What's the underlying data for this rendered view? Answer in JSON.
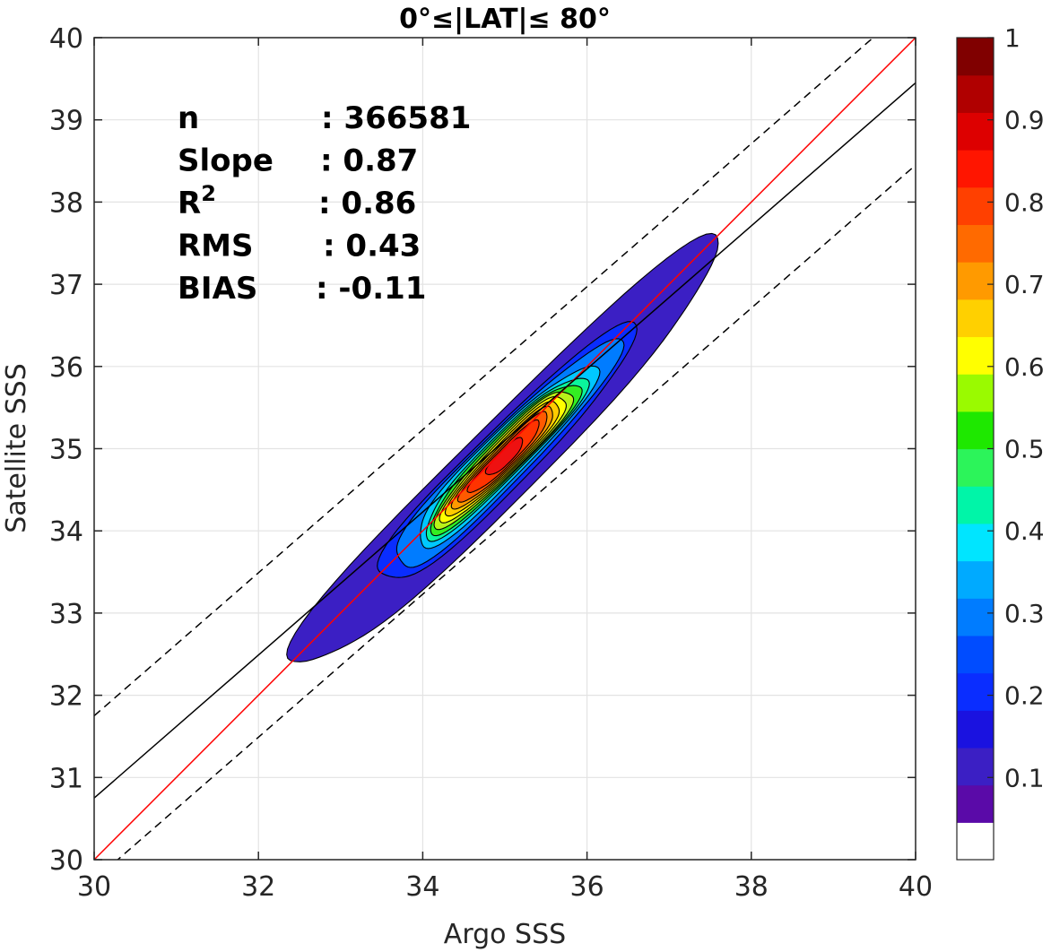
{
  "chart_data": {
    "type": "heatmap",
    "subtype": "density-contour-scatter",
    "title": "0°≤|LAT|≤ 80°",
    "xlabel": "Argo SSS",
    "ylabel": "Satellite SSS",
    "xlim": [
      30,
      40
    ],
    "ylim": [
      30,
      40
    ],
    "xticks": [
      30,
      32,
      34,
      36,
      38,
      40
    ],
    "yticks": [
      30,
      31,
      32,
      33,
      34,
      35,
      36,
      37,
      38,
      39,
      40
    ],
    "grid": true,
    "stats": [
      {
        "label": "n",
        "value": ": 366581"
      },
      {
        "label": "Slope",
        "value": ": 0.87"
      },
      {
        "label": "R",
        "sup": "2",
        "value": ": 0.86"
      },
      {
        "label": "RMS",
        "value": ": 0.43"
      },
      {
        "label": "BIAS",
        "value": ": -0.11"
      }
    ],
    "lines": [
      {
        "kind": "one-to-one",
        "color": "#ff0000",
        "style": "solid",
        "points": [
          [
            30,
            30
          ],
          [
            40,
            40
          ]
        ]
      },
      {
        "kind": "regression",
        "color": "#000000",
        "style": "solid",
        "points": [
          [
            30,
            30.75
          ],
          [
            40,
            39.45
          ]
        ]
      },
      {
        "kind": "upper-bound",
        "color": "#000000",
        "style": "dashed",
        "points": [
          [
            30,
            31.75
          ],
          [
            40,
            40.45
          ]
        ]
      },
      {
        "kind": "lower-bound",
        "color": "#000000",
        "style": "dashed",
        "points": [
          [
            30,
            29.75
          ],
          [
            40,
            38.45
          ]
        ]
      }
    ],
    "density": {
      "center_x": 35.0,
      "center_y": 34.9,
      "axis_dx": 0.707,
      "axis_dy": 0.707,
      "levels": [
        {
          "level": 0.05,
          "half_len": 3.6,
          "half_width": 0.45,
          "color": "#3b1fc4"
        },
        {
          "level": 0.15,
          "half_len": 2.15,
          "half_width": 0.34,
          "color": "#0a2dff"
        },
        {
          "level": 0.25,
          "half_len": 1.9,
          "half_width": 0.3,
          "color": "#007cff"
        },
        {
          "level": 0.35,
          "half_len": 1.5,
          "half_width": 0.27,
          "color": "#00c8ff"
        },
        {
          "level": 0.45,
          "half_len": 1.35,
          "half_width": 0.24,
          "color": "#0bf59c"
        },
        {
          "level": 0.5,
          "half_len": 1.25,
          "half_width": 0.22,
          "color": "#33ee22"
        },
        {
          "level": 0.6,
          "half_len": 1.15,
          "half_width": 0.2,
          "color": "#b9f21a"
        },
        {
          "level": 0.65,
          "half_len": 1.05,
          "half_width": 0.18,
          "color": "#ffff00"
        },
        {
          "level": 0.7,
          "half_len": 0.95,
          "half_width": 0.16,
          "color": "#ffcc00"
        },
        {
          "level": 0.75,
          "half_len": 0.85,
          "half_width": 0.14,
          "color": "#ff9900"
        },
        {
          "level": 0.8,
          "half_len": 0.75,
          "half_width": 0.12,
          "color": "#ff5a00"
        },
        {
          "level": 0.85,
          "half_len": 0.6,
          "half_width": 0.1,
          "color": "#ff3300"
        },
        {
          "level": 0.9,
          "half_len": 0.3,
          "half_width": 0.08,
          "color": "#ee1111"
        }
      ]
    },
    "colorbar": {
      "ticks": [
        "1",
        "0.9",
        "0.8",
        "0.7",
        "0.6",
        "0.5",
        "0.4",
        "0.3",
        "0.2",
        "0.1"
      ],
      "tick_values": [
        1,
        0.9,
        0.8,
        0.7,
        0.6,
        0.5,
        0.4,
        0.3,
        0.2,
        0.1
      ],
      "colors": [
        "#ffffff",
        "#5a0aa8",
        "#3b1fc4",
        "#1a12e0",
        "#0a2dff",
        "#004cff",
        "#007cff",
        "#00aaff",
        "#00e5ff",
        "#00f5a8",
        "#2cf45a",
        "#1ee800",
        "#9afa00",
        "#ffff00",
        "#ffd000",
        "#ff9a00",
        "#ff6a00",
        "#ff4000",
        "#ff1500",
        "#dd0000",
        "#b00000",
        "#800000"
      ]
    }
  }
}
